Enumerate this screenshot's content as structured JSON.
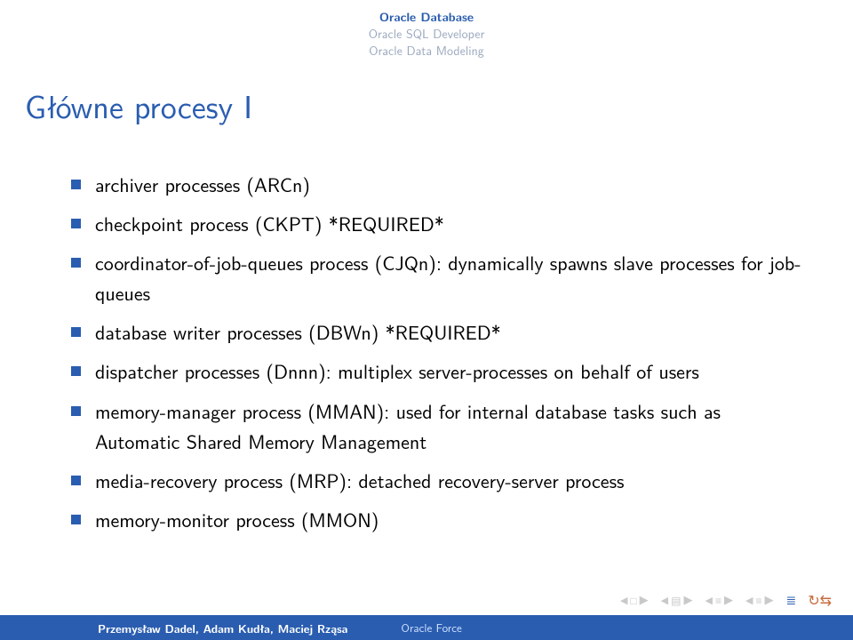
{
  "nav": {
    "items": [
      {
        "label": "Oracle Database",
        "active": true
      },
      {
        "label": "Oracle SQL Developer",
        "active": false
      },
      {
        "label": "Oracle Data Modeling",
        "active": false
      }
    ]
  },
  "title": "Główne procesy I",
  "bullets": [
    "archiver processes (ARCn)",
    "checkpoint process (CKPT) *REQUIRED*",
    "coordinator-of-job-queues process (CJQn): dynamically spawns slave processes for job-queues",
    "database writer processes (DBWn) *REQUIRED*",
    "dispatcher processes (Dnnn): multiplex server-processes on behalf of users",
    "memory-manager process (MMAN): used for internal database tasks such as Automatic Shared Memory Management",
    "media-recovery process (MRP): detached recovery-server process",
    "memory-monitor process (MMON)"
  ],
  "footer": {
    "authors": "Przemysław Dadel, Adam Kudła, Maciej Rząsa",
    "title": "Oracle Force"
  },
  "colors": {
    "accent": "#2a5db0",
    "muted_nav": "#9aa8bd",
    "text": "#000000",
    "footer_bg": "#2a5db0",
    "footer_text": "#ffffff",
    "footer_sub": "#cfe0ff",
    "icon_muted": "#c9c9c9",
    "loop": "#c76a3b"
  }
}
